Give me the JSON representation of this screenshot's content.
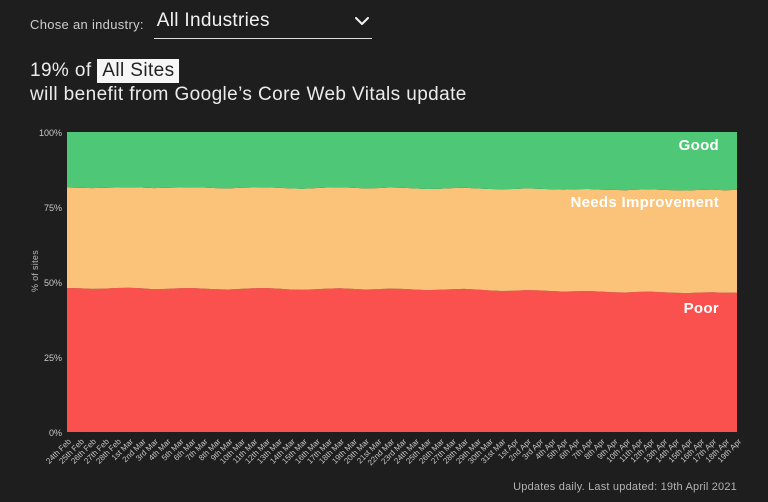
{
  "colors": {
    "background": "#1e1e1e",
    "good": "#4ec877",
    "needs_improvement": "#fbc379",
    "poor": "#fb514e",
    "highlight_bg": "#f6f6f6"
  },
  "industry_picker": {
    "label": "Chose an industry:",
    "selected": "All Industries",
    "chevron_icon": "chevron-down"
  },
  "headline": {
    "prefix": "19% of",
    "highlight": "All Sites",
    "line2": "will benefit from Google’s Core Web Vitals update"
  },
  "footer": {
    "text": "Updates daily. Last updated: 19th April 2021"
  },
  "chart_data": {
    "type": "area",
    "stacked": true,
    "ylabel": "% of sites",
    "ylim": [
      0,
      100
    ],
    "grid": false,
    "legend_position": "inside-right",
    "y_ticks": [
      {
        "label": "100%",
        "value": 100
      },
      {
        "label": "75%",
        "value": 75
      },
      {
        "label": "50%",
        "value": 50
      },
      {
        "label": "25%",
        "value": 25
      },
      {
        "label": "0%",
        "value": 0
      }
    ],
    "categories": [
      "24th Feb",
      "25th Feb",
      "26th Feb",
      "27th Feb",
      "28th Feb",
      "1st Mar",
      "2nd Mar",
      "3rd Mar",
      "4th Mar",
      "5th Mar",
      "6th Mar",
      "7th Mar",
      "8th Mar",
      "9th Mar",
      "10th Mar",
      "11th Mar",
      "12th Mar",
      "13th Mar",
      "14th Mar",
      "15th Mar",
      "16th Mar",
      "17th Mar",
      "18th Mar",
      "19th Mar",
      "20th Mar",
      "21st Mar",
      "22nd Mar",
      "23rd Mar",
      "24th Mar",
      "25th Mar",
      "26th Mar",
      "27th Mar",
      "28th Mar",
      "29th Mar",
      "30th Mar",
      "31st Mar",
      "1st Apr",
      "2nd Apr",
      "3rd Apr",
      "4th Apr",
      "5th Apr",
      "6th Apr",
      "7th Apr",
      "8th Apr",
      "9th Apr",
      "10th Apr",
      "11th Apr",
      "12th Apr",
      "13th Apr",
      "14th Apr",
      "15th Apr",
      "16th Apr",
      "17th Apr",
      "18th Apr",
      "19th Apr"
    ],
    "series": [
      {
        "name": "Poor",
        "color": "#fb514e",
        "values": [
          48.0,
          47.9,
          47.7,
          47.8,
          48.0,
          48.1,
          47.9,
          47.6,
          47.7,
          47.9,
          48.0,
          47.8,
          47.6,
          47.5,
          47.7,
          47.9,
          48.0,
          47.8,
          47.5,
          47.4,
          47.6,
          47.8,
          47.9,
          47.7,
          47.5,
          47.6,
          47.8,
          47.7,
          47.5,
          47.3,
          47.4,
          47.6,
          47.7,
          47.5,
          47.2,
          47.0,
          47.1,
          47.3,
          47.2,
          47.0,
          46.8,
          46.9,
          47.0,
          46.8,
          46.6,
          46.5,
          46.7,
          46.8,
          46.6,
          46.4,
          46.3,
          46.5,
          46.6,
          46.4,
          46.5
        ]
      },
      {
        "name": "Needs Improvement",
        "color": "#fbc379",
        "values": [
          33.5,
          33.5,
          33.6,
          33.6,
          33.5,
          33.5,
          33.6,
          33.7,
          33.7,
          33.6,
          33.6,
          33.7,
          33.7,
          33.7,
          33.7,
          33.6,
          33.6,
          33.6,
          33.7,
          33.7,
          33.7,
          33.7,
          33.7,
          33.7,
          33.7,
          33.7,
          33.7,
          33.7,
          33.7,
          33.7,
          33.7,
          33.7,
          33.7,
          33.7,
          33.8,
          33.9,
          33.9,
          33.9,
          33.9,
          33.9,
          34.0,
          34.0,
          34.0,
          34.0,
          34.1,
          34.1,
          34.1,
          34.1,
          34.1,
          34.2,
          34.2,
          34.2,
          34.2,
          34.2,
          34.2
        ]
      },
      {
        "name": "Good",
        "color": "#4ec877",
        "values": [
          18.5,
          18.6,
          18.7,
          18.6,
          18.5,
          18.4,
          18.5,
          18.7,
          18.6,
          18.5,
          18.4,
          18.5,
          18.7,
          18.8,
          18.6,
          18.5,
          18.4,
          18.6,
          18.8,
          18.9,
          18.7,
          18.5,
          18.4,
          18.6,
          18.8,
          18.7,
          18.5,
          18.6,
          18.8,
          19.0,
          18.9,
          18.7,
          18.6,
          18.8,
          19.0,
          19.1,
          19.0,
          18.8,
          18.9,
          19.1,
          19.2,
          19.1,
          19.0,
          19.2,
          19.3,
          19.4,
          19.2,
          19.1,
          19.3,
          19.4,
          19.5,
          19.3,
          19.2,
          19.4,
          19.3
        ]
      }
    ]
  }
}
